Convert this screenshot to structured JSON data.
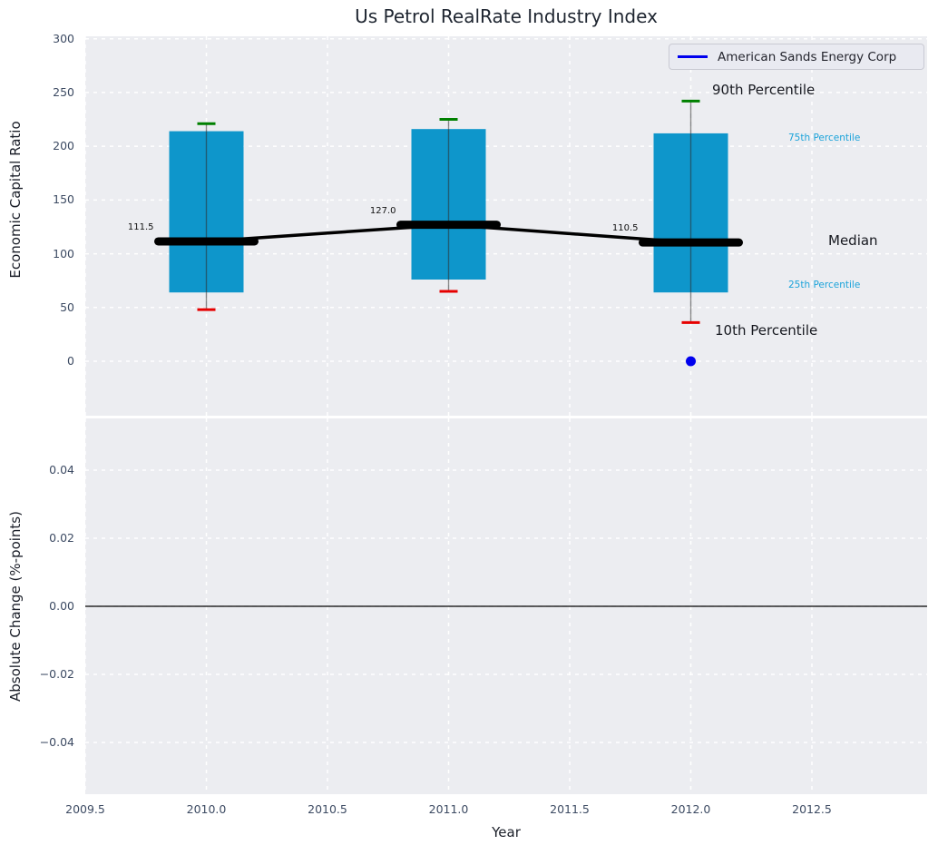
{
  "title": "Us Petrol RealRate Industry Index",
  "legend": {
    "label": "American Sands Energy Corp",
    "color": "#0000ee"
  },
  "percentile_labels": {
    "p90": "90th Percentile",
    "p75": "75th Percentile",
    "median": "Median",
    "p25": "25th Percentile",
    "p10": "10th Percentile"
  },
  "colors": {
    "box": "#0e96cb",
    "cap_top": "#008000",
    "cap_bottom": "#e60000",
    "whisker": "#3c3c3c",
    "trend": "#000000",
    "marker": "#0000ee",
    "axes_bg": "#ecedf1",
    "grid": "#ffffff",
    "axhline": "#000000"
  },
  "chart_data": [
    {
      "type": "boxplot",
      "title": "Us Petrol RealRate Industry Index",
      "xlabel": "Year",
      "ylabel": "Economic Capital Ratio",
      "xlim": [
        2009.5,
        2012.98
      ],
      "ylim": [
        -49,
        302
      ],
      "grid": "white dashed",
      "legend_position": "upper right",
      "xticks": [
        2009.5,
        2010.0,
        2010.5,
        2011.0,
        2011.5,
        2012.0,
        2012.5
      ],
      "xtick_labels": [
        "2009.5",
        "2010.0",
        "2010.5",
        "2011.0",
        "2011.5",
        "2012.0",
        "2012.5"
      ],
      "yticks": [
        0,
        50,
        100,
        150,
        200,
        250,
        300
      ],
      "ytick_labels": [
        "0",
        "50",
        "100",
        "150",
        "200",
        "250",
        "300"
      ],
      "boxes": [
        {
          "x": 2010,
          "p10": 48,
          "p25": 64,
          "median": 111.5,
          "p75": 214,
          "p90": 221,
          "label": "111.5"
        },
        {
          "x": 2011,
          "p10": 65,
          "p25": 76,
          "median": 127.0,
          "p75": 216,
          "p90": 225,
          "label": "127.0"
        },
        {
          "x": 2012,
          "p10": 36,
          "p25": 64,
          "median": 110.5,
          "p75": 212,
          "p90": 242,
          "label": "110.5"
        }
      ],
      "median_trend": {
        "x": [
          2010,
          2011,
          2012
        ],
        "y": [
          111.5,
          127.0,
          110.5
        ]
      },
      "series": [
        {
          "name": "American Sands Energy Corp",
          "color": "#0000ee",
          "points": [
            {
              "x": 2012,
              "y": 0
            }
          ]
        }
      ]
    },
    {
      "type": "line",
      "xlabel": "Year",
      "ylabel": "Absolute Change (%-points)",
      "xlim": [
        2009.5,
        2012.98
      ],
      "ylim": [
        -0.055,
        0.055
      ],
      "grid": "white dashed",
      "xticks": [
        2009.5,
        2010.0,
        2010.5,
        2011.0,
        2011.5,
        2012.0,
        2012.5
      ],
      "yticks": [
        0.04,
        0.02,
        0.0,
        -0.02,
        -0.04
      ],
      "ytick_labels": [
        "0.04",
        "0.02",
        "0.00",
        "−0.02",
        "−0.04"
      ],
      "axhline": 0.0,
      "series": []
    }
  ]
}
